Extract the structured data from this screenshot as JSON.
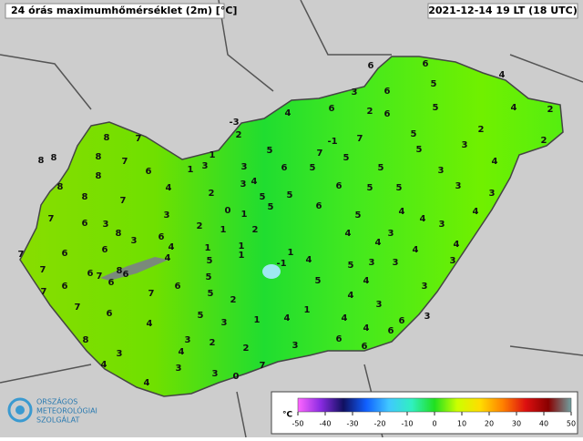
{
  "header": {
    "title": "24 órás maximumhőmérséklet (2m) [°C]",
    "timestamp": "2021-12-14 19 LT (18 UTC)"
  },
  "logo": {
    "lines": [
      "ORSZÁGOS",
      "METEOROLÓGIAI",
      "SZOLGÁLAT"
    ]
  },
  "colorbar": {
    "unit": "°C",
    "range": [
      -50,
      50
    ],
    "ticks": [
      -50,
      -40,
      -30,
      -20,
      -10,
      0,
      10,
      20,
      30,
      40,
      50
    ],
    "colors": [
      "#ff66ff",
      "#8a2be2",
      "#101060",
      "#1060ff",
      "#40c8ff",
      "#30f0c0",
      "#20e020",
      "#ccff00",
      "#ffdd00",
      "#ff8000",
      "#dd1010",
      "#880000",
      "#70a0a0"
    ]
  },
  "stations": [
    6,
    6,
    4,
    3,
    6,
    5,
    2,
    4,
    6,
    2,
    6,
    4,
    5,
    -3,
    2,
    5,
    2,
    2,
    -1,
    7,
    7,
    5,
    5,
    5,
    3,
    8,
    7,
    8,
    8,
    8,
    7,
    1,
    3,
    1,
    6,
    3,
    6,
    5,
    5,
    3,
    4,
    8,
    8,
    4,
    2,
    3,
    4,
    5,
    5,
    6,
    5,
    5,
    3,
    3,
    8,
    7,
    5,
    6,
    7,
    6,
    3,
    0,
    1,
    5,
    4,
    4,
    4,
    3,
    8,
    2,
    1,
    2,
    4,
    3,
    3,
    6,
    6,
    3,
    6,
    4,
    1,
    1,
    1,
    1,
    4,
    4,
    4,
    4,
    7,
    6,
    7,
    8,
    4,
    5,
    -1,
    5,
    3,
    3,
    3,
    7,
    6,
    6,
    6,
    6,
    5,
    5,
    4,
    7,
    7,
    7,
    5,
    2,
    4,
    3,
    3,
    6,
    5,
    3,
    1,
    1,
    4,
    4,
    3,
    6,
    6,
    8,
    4,
    4,
    6,
    3,
    3,
    2,
    2,
    3,
    4,
    6,
    4,
    3,
    3,
    0,
    7,
    4
  ]
}
